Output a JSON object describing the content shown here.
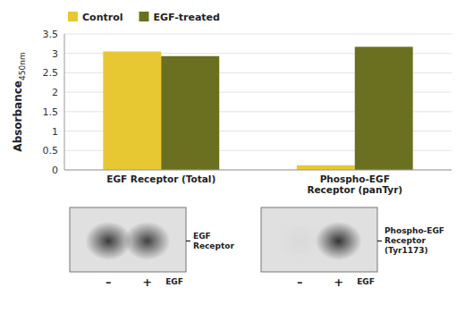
{
  "chart_data": {
    "type": "bar",
    "categories": [
      "EGF Receptor (Total)",
      "Phospho-EGF\nReceptor (panTyr)"
    ],
    "series": [
      {
        "name": "Control",
        "color": "#E8C832",
        "values": [
          3.05,
          0.12
        ]
      },
      {
        "name": "EGF-treated",
        "color": "#6B7020",
        "values": [
          2.93,
          3.17
        ]
      }
    ],
    "ylabel": {
      "text": "Absorbance",
      "subscript": "450nm"
    },
    "ylim": [
      0,
      3.5
    ],
    "yticks": [
      0,
      0.5,
      1,
      1.5,
      2,
      2.5,
      3,
      3.5
    ],
    "grid": true,
    "legend": "upper left",
    "annotations": [
      {
        "label": "EGF\nReceptor",
        "lanes": [
          "–",
          "+"
        ],
        "lane_title": "EGF"
      },
      {
        "label": "Phospho-EGF\nReceptor\n(Tyr1173)",
        "lanes": [
          "–",
          "+"
        ],
        "lane_title": "EGF"
      }
    ]
  }
}
